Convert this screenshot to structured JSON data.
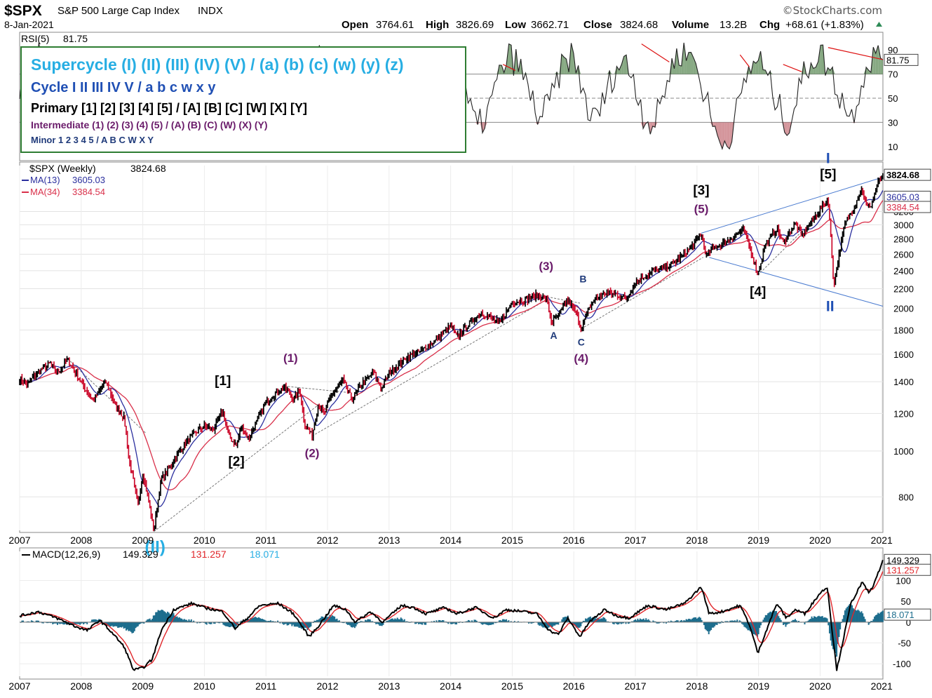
{
  "header": {
    "symbol": "$SPX",
    "name": "S&P 500 Large Cap Index",
    "exchange": "INDX",
    "date": "8-Jan-2021",
    "watermark": "©StockCharts.com",
    "open_label": "Open",
    "open": "3764.61",
    "high_label": "High",
    "high": "3826.69",
    "low_label": "Low",
    "low": "3662.71",
    "close_label": "Close",
    "close": "3824.68",
    "volume_label": "Volume",
    "volume": "13.2B",
    "chg_label": "Chg",
    "chg": "+68.61 (+1.83%)",
    "chg_arrow": "triangle-up-icon"
  },
  "legend_box": {
    "supercycle": "Supercycle (I) (II) (III) (IV) (V) / (a) (b) (c) (w) (y) (z)",
    "cycle": "Cycle I II III IV V / a b c w x y",
    "primary": "Primary [1] [2] [3] [4] [5] / [A] [B] [C] [W] [X] [Y]",
    "intermediate": "Intermediate (1) (2) (3) (4) (5) / (A) (B) (C) (W) (X) (Y)",
    "minor": "Minor 1 2 3 4 5 / A B C W X Y",
    "colors": {
      "supercycle": "#27aee3",
      "cycle": "#1f4fb4",
      "primary": "#000000",
      "intermediate": "#6a1b6a",
      "minor": "#1f3a7a",
      "border": "#2e7d32"
    }
  },
  "colors": {
    "up_bar": "#000000",
    "down_bar": "#cc0d2e",
    "ma13": "#2b2f9e",
    "ma34": "#d9304a",
    "rsi_line": "#222222",
    "rsi_fill": "#5f8c5a",
    "macd_line": "#000000",
    "signal_line": "#e0262a",
    "histogram": "#1d6d8d",
    "trendline": "#4a7bd0"
  },
  "chart_data": [
    {
      "panel": "rsi",
      "type": "line",
      "indicator_label": "RSI(5)",
      "current": "81.75",
      "ylim": [
        0,
        100
      ],
      "yticks": [
        "90",
        "70",
        "50",
        "30",
        "10"
      ],
      "reference_lines": [
        70,
        50,
        30
      ],
      "series": [
        {
          "values": [
            62,
            80,
            85,
            68,
            44,
            28,
            55,
            73,
            82,
            64,
            41,
            22,
            48,
            70,
            86,
            77,
            52,
            30,
            19,
            46,
            69,
            83,
            72,
            58,
            36,
            24,
            52,
            74,
            88,
            80,
            61,
            42,
            20,
            50,
            76,
            84,
            66,
            39,
            27,
            55,
            79,
            90,
            71,
            48,
            25,
            38,
            66,
            85,
            78,
            54,
            33,
            47,
            72,
            87,
            62,
            30,
            44,
            69,
            82,
            68,
            36,
            26,
            58,
            83,
            92,
            79,
            49,
            18,
            12,
            40,
            71,
            85,
            64,
            42,
            27,
            60,
            81,
            88,
            70,
            50,
            34,
            66,
            86,
            81.75
          ]
        }
      ],
      "x_range": [
        "2007",
        "2021"
      ]
    },
    {
      "panel": "price",
      "type": "line",
      "title": "$SPX (Weekly)",
      "current": "3824.68",
      "scale": "log",
      "ylim": [
        680,
        4000
      ],
      "yticks": [
        800,
        1000,
        1200,
        1400,
        1600,
        1800,
        2000,
        2200,
        2400,
        2600,
        2800,
        3000,
        3200
      ],
      "x": [
        "2007",
        "2008",
        "2009",
        "2010",
        "2011",
        "2012",
        "2013",
        "2014",
        "2015",
        "2016",
        "2017",
        "2018",
        "2019",
        "2020",
        "2021"
      ],
      "anchors": [
        [
          2007.0,
          1420
        ],
        [
          2007.12,
          1380
        ],
        [
          2007.3,
          1470
        ],
        [
          2007.5,
          1530
        ],
        [
          2007.6,
          1460
        ],
        [
          2007.78,
          1555
        ],
        [
          2007.9,
          1470
        ],
        [
          2008.05,
          1360
        ],
        [
          2008.2,
          1280
        ],
        [
          2008.4,
          1400
        ],
        [
          2008.55,
          1250
        ],
        [
          2008.7,
          1170
        ],
        [
          2008.78,
          950
        ],
        [
          2008.85,
          860
        ],
        [
          2008.92,
          760
        ],
        [
          2009.0,
          900
        ],
        [
          2009.08,
          800
        ],
        [
          2009.18,
          676
        ],
        [
          2009.3,
          870
        ],
        [
          2009.45,
          930
        ],
        [
          2009.6,
          1000
        ],
        [
          2009.8,
          1080
        ],
        [
          2010.0,
          1130
        ],
        [
          2010.15,
          1110
        ],
        [
          2010.3,
          1217
        ],
        [
          2010.4,
          1070
        ],
        [
          2010.52,
          1030
        ],
        [
          2010.6,
          1120
        ],
        [
          2010.72,
          1060
        ],
        [
          2010.9,
          1190
        ],
        [
          2011.0,
          1270
        ],
        [
          2011.15,
          1320
        ],
        [
          2011.3,
          1363
        ],
        [
          2011.45,
          1290
        ],
        [
          2011.55,
          1340
        ],
        [
          2011.62,
          1150
        ],
        [
          2011.75,
          1075
        ],
        [
          2011.85,
          1250
        ],
        [
          2011.95,
          1200
        ],
        [
          2012.05,
          1300
        ],
        [
          2012.25,
          1410
        ],
        [
          2012.4,
          1280
        ],
        [
          2012.55,
          1385
        ],
        [
          2012.75,
          1460
        ],
        [
          2012.88,
          1355
        ],
        [
          2013.0,
          1460
        ],
        [
          2013.3,
          1580
        ],
        [
          2013.5,
          1620
        ],
        [
          2013.75,
          1710
        ],
        [
          2014.0,
          1840
        ],
        [
          2014.1,
          1740
        ],
        [
          2014.5,
          1960
        ],
        [
          2014.8,
          1860
        ],
        [
          2015.0,
          2060
        ],
        [
          2015.2,
          2080
        ],
        [
          2015.4,
          2130
        ],
        [
          2015.55,
          2100
        ],
        [
          2015.64,
          1870
        ],
        [
          2015.75,
          1930
        ],
        [
          2015.9,
          2090
        ],
        [
          2016.05,
          1930
        ],
        [
          2016.12,
          1810
        ],
        [
          2016.3,
          2060
        ],
        [
          2016.5,
          2160
        ],
        [
          2016.7,
          2140
        ],
        [
          2016.85,
          2090
        ],
        [
          2017.0,
          2270
        ],
        [
          2017.3,
          2400
        ],
        [
          2017.6,
          2470
        ],
        [
          2017.9,
          2680
        ],
        [
          2018.07,
          2870
        ],
        [
          2018.15,
          2580
        ],
        [
          2018.3,
          2700
        ],
        [
          2018.45,
          2750
        ],
        [
          2018.75,
          2930
        ],
        [
          2018.88,
          2630
        ],
        [
          2018.99,
          2350
        ],
        [
          2019.1,
          2700
        ],
        [
          2019.3,
          2950
        ],
        [
          2019.4,
          2740
        ],
        [
          2019.6,
          3020
        ],
        [
          2019.7,
          2840
        ],
        [
          2020.0,
          3230
        ],
        [
          2020.13,
          3390
        ],
        [
          2020.22,
          2230
        ],
        [
          2020.28,
          2470
        ],
        [
          2020.4,
          3000
        ],
        [
          2020.55,
          3270
        ],
        [
          2020.68,
          3580
        ],
        [
          2020.75,
          3280
        ],
        [
          2020.83,
          3300
        ],
        [
          2020.95,
          3700
        ],
        [
          2021.02,
          3824.68
        ]
      ],
      "series": [
        {
          "name": "MA(13)",
          "current": "3605.03",
          "lag": 13
        },
        {
          "name": "MA(34)",
          "current": "3384.54",
          "lag": 34
        }
      ],
      "wave_labels": [
        {
          "text": "(II)",
          "x": 2009.2,
          "y": 676,
          "degree": "supercycle"
        },
        {
          "text": "[1]",
          "x": 2010.3,
          "y": 1217,
          "degree": "primary"
        },
        {
          "text": "[2]",
          "x": 2010.52,
          "y": 1030,
          "degree": "primary"
        },
        {
          "text": "(1)",
          "x": 2011.4,
          "y": 1363,
          "degree": "intermediate"
        },
        {
          "text": "(2)",
          "x": 2011.75,
          "y": 1075,
          "degree": "intermediate"
        },
        {
          "text": "(3)",
          "x": 2015.55,
          "y": 2130,
          "degree": "intermediate"
        },
        {
          "text": "B",
          "x": 2015.9,
          "y": 2090,
          "degree": "minor"
        },
        {
          "text": "A",
          "x": 2015.64,
          "y": 1870,
          "degree": "minor"
        },
        {
          "text": "C",
          "x": 2016.12,
          "y": 1810,
          "degree": "minor"
        },
        {
          "text": "(4)",
          "x": 2016.12,
          "y": 1810,
          "degree": "intermediate"
        },
        {
          "text": "[3]",
          "x": 2018.07,
          "y": 2870,
          "degree": "primary"
        },
        {
          "text": "(5)",
          "x": 2018.07,
          "y": 2870,
          "degree": "intermediate"
        },
        {
          "text": "[4]",
          "x": 2018.99,
          "y": 2350,
          "degree": "primary"
        },
        {
          "text": "I",
          "x": 2020.13,
          "y": 3390,
          "degree": "cycle"
        },
        {
          "text": "[5]",
          "x": 2020.13,
          "y": 3390,
          "degree": "primary"
        },
        {
          "text": "II",
          "x": 2020.22,
          "y": 2230,
          "degree": "cycle"
        }
      ]
    },
    {
      "panel": "macd",
      "type": "line",
      "indicator_label": "MACD(12,26,9)",
      "macd_value": "149.329",
      "signal_value": "131.257",
      "hist_value": "18.071",
      "ylim": [
        -130,
        170
      ],
      "yticks": [
        100,
        50,
        0,
        -50,
        -100
      ],
      "x": [
        "2007",
        "2008",
        "2009",
        "2010",
        "2011",
        "2012",
        "2013",
        "2014",
        "2015",
        "2016",
        "2017",
        "2018",
        "2019",
        "2020",
        "2021"
      ],
      "macd_anchors": [
        [
          2007.0,
          15
        ],
        [
          2007.3,
          25
        ],
        [
          2007.6,
          10
        ],
        [
          2007.9,
          -10
        ],
        [
          2008.1,
          -20
        ],
        [
          2008.3,
          5
        ],
        [
          2008.5,
          -25
        ],
        [
          2008.7,
          -60
        ],
        [
          2008.85,
          -115
        ],
        [
          2009.0,
          -110
        ],
        [
          2009.15,
          -90
        ],
        [
          2009.3,
          -20
        ],
        [
          2009.5,
          30
        ],
        [
          2009.8,
          45
        ],
        [
          2010.0,
          35
        ],
        [
          2010.3,
          25
        ],
        [
          2010.5,
          -15
        ],
        [
          2010.7,
          10
        ],
        [
          2010.9,
          40
        ],
        [
          2011.2,
          45
        ],
        [
          2011.45,
          20
        ],
        [
          2011.7,
          -35
        ],
        [
          2011.85,
          -10
        ],
        [
          2012.1,
          40
        ],
        [
          2012.3,
          30
        ],
        [
          2012.45,
          0
        ],
        [
          2012.7,
          25
        ],
        [
          2012.9,
          0
        ],
        [
          2013.2,
          40
        ],
        [
          2013.4,
          35
        ],
        [
          2013.6,
          20
        ],
        [
          2013.9,
          35
        ],
        [
          2014.1,
          20
        ],
        [
          2014.4,
          35
        ],
        [
          2014.7,
          10
        ],
        [
          2014.9,
          30
        ],
        [
          2015.2,
          25
        ],
        [
          2015.4,
          20
        ],
        [
          2015.6,
          -20
        ],
        [
          2015.75,
          -30
        ],
        [
          2015.9,
          10
        ],
        [
          2016.1,
          -35
        ],
        [
          2016.25,
          0
        ],
        [
          2016.5,
          30
        ],
        [
          2016.7,
          15
        ],
        [
          2016.9,
          10
        ],
        [
          2017.2,
          40
        ],
        [
          2017.5,
          30
        ],
        [
          2017.8,
          45
        ],
        [
          2018.07,
          85
        ],
        [
          2018.2,
          20
        ],
        [
          2018.4,
          25
        ],
        [
          2018.7,
          40
        ],
        [
          2018.85,
          -5
        ],
        [
          2018.99,
          -75
        ],
        [
          2019.15,
          -10
        ],
        [
          2019.3,
          45
        ],
        [
          2019.45,
          10
        ],
        [
          2019.6,
          30
        ],
        [
          2019.75,
          20
        ],
        [
          2020.0,
          70
        ],
        [
          2020.12,
          85
        ],
        [
          2020.18,
          0
        ],
        [
          2020.27,
          -115
        ],
        [
          2020.35,
          -60
        ],
        [
          2020.5,
          45
        ],
        [
          2020.68,
          95
        ],
        [
          2020.8,
          70
        ],
        [
          2020.9,
          100
        ],
        [
          2021.02,
          149.329
        ]
      ],
      "signal_lag": 9
    }
  ]
}
